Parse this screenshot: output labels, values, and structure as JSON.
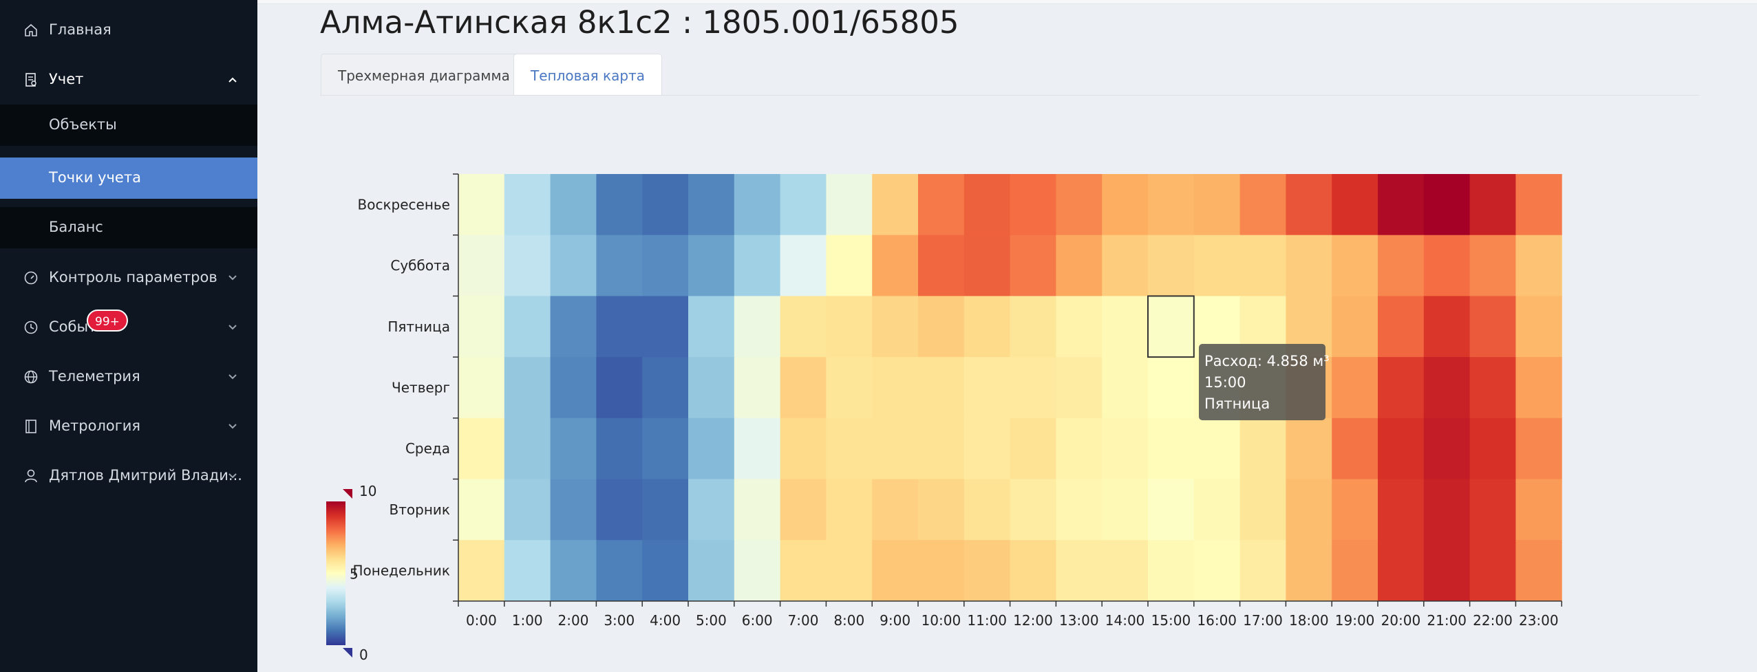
{
  "page": {
    "title": "Алма-Атинская 8к1с2 : 1805.001/65805",
    "tabs": [
      {
        "label": "Трехмерная диаграмма",
        "active": false
      },
      {
        "label": "Тепловая карта",
        "active": true
      }
    ]
  },
  "sidebar": {
    "items": [
      {
        "label": "Главная",
        "icon": "home-icon"
      },
      {
        "label": "Учет",
        "icon": "ledger-icon",
        "expanded": true
      },
      {
        "label": "Контроль параметров",
        "icon": "gauge-icon"
      },
      {
        "label": "События",
        "icon": "events-icon",
        "badge": "99+"
      },
      {
        "label": "Телеметрия",
        "icon": "globe-icon"
      },
      {
        "label": "Метрология",
        "icon": "book-icon"
      },
      {
        "label": "Дятлов Дмитрий Влади...",
        "icon": "user-icon"
      }
    ],
    "subitems": [
      {
        "label": "Объекты",
        "active": false
      },
      {
        "label": "Точки учета",
        "active": true
      },
      {
        "label": "Баланс",
        "active": false
      }
    ]
  },
  "tooltip": {
    "line1": "Расход: 4.858 м³",
    "line2": "15:00",
    "line3": "Пятница"
  },
  "colors": {
    "sidebar_bg": "#0d1621",
    "active_item": "#4f80cf",
    "badge": "#e21d3b",
    "tab_active_text": "#4a78c2"
  },
  "chart_data": {
    "type": "heatmap",
    "x": [
      "0:00",
      "1:00",
      "2:00",
      "3:00",
      "4:00",
      "5:00",
      "6:00",
      "7:00",
      "8:00",
      "9:00",
      "10:00",
      "11:00",
      "12:00",
      "13:00",
      "14:00",
      "15:00",
      "16:00",
      "17:00",
      "18:00",
      "19:00",
      "20:00",
      "21:00",
      "22:00",
      "23:00"
    ],
    "y": [
      "Воскресенье",
      "Суббота",
      "Пятница",
      "Четверг",
      "Среда",
      "Вторник",
      "Понедельник"
    ],
    "values": [
      [
        4.7,
        3.2,
        2.2,
        1.1,
        0.9,
        1.3,
        2.3,
        3.0,
        4.4,
        6.4,
        7.8,
        8.2,
        8.0,
        7.6,
        7.0,
        6.8,
        6.9,
        7.6,
        8.4,
        9.0,
        9.8,
        10.0,
        9.3,
        7.8
      ],
      [
        4.5,
        3.4,
        2.5,
        1.5,
        1.4,
        1.8,
        2.8,
        4.1,
        5.1,
        7.1,
        8.1,
        8.2,
        7.8,
        7.1,
        6.4,
        6.2,
        6.1,
        6.1,
        6.4,
        6.8,
        7.6,
        8.0,
        7.6,
        6.6
      ],
      [
        4.6,
        2.9,
        1.4,
        0.8,
        0.8,
        2.8,
        4.4,
        5.8,
        5.9,
        6.2,
        6.4,
        6.1,
        5.8,
        5.4,
        5.2,
        4.858,
        5.0,
        5.4,
        6.4,
        6.9,
        8.1,
        8.9,
        8.3,
        6.8
      ],
      [
        4.7,
        2.6,
        1.3,
        0.6,
        0.9,
        2.6,
        4.5,
        6.3,
        5.8,
        5.9,
        5.9,
        5.7,
        5.7,
        5.6,
        5.2,
        5.0,
        5.1,
        5.7,
        6.8,
        7.4,
        8.8,
        9.3,
        8.8,
        7.2
      ],
      [
        5.3,
        2.6,
        1.6,
        0.9,
        1.1,
        2.3,
        4.2,
        6.1,
        5.9,
        5.9,
        5.9,
        5.7,
        5.9,
        5.4,
        5.3,
        5.1,
        5.1,
        5.8,
        6.6,
        7.9,
        9.0,
        9.4,
        9.0,
        7.6
      ],
      [
        4.8,
        2.7,
        1.5,
        0.8,
        0.9,
        2.7,
        4.5,
        6.3,
        6.0,
        6.3,
        6.2,
        5.9,
        5.6,
        5.3,
        5.2,
        4.9,
        5.2,
        5.8,
        6.7,
        7.4,
        8.9,
        9.3,
        8.9,
        7.3
      ],
      [
        5.7,
        3.1,
        1.8,
        1.2,
        1.0,
        2.6,
        4.4,
        6.0,
        6.0,
        6.5,
        6.5,
        6.4,
        6.1,
        5.6,
        5.6,
        5.2,
        5.1,
        5.6,
        6.7,
        7.5,
        8.9,
        9.3,
        8.9,
        7.5
      ]
    ],
    "color_scale": {
      "min": 0,
      "mid": 5,
      "max": 10,
      "labels": [
        "10",
        "5",
        "0"
      ]
    },
    "highlighted_cell": {
      "x": "15:00",
      "y": "Пятница",
      "value": 4.858
    }
  }
}
